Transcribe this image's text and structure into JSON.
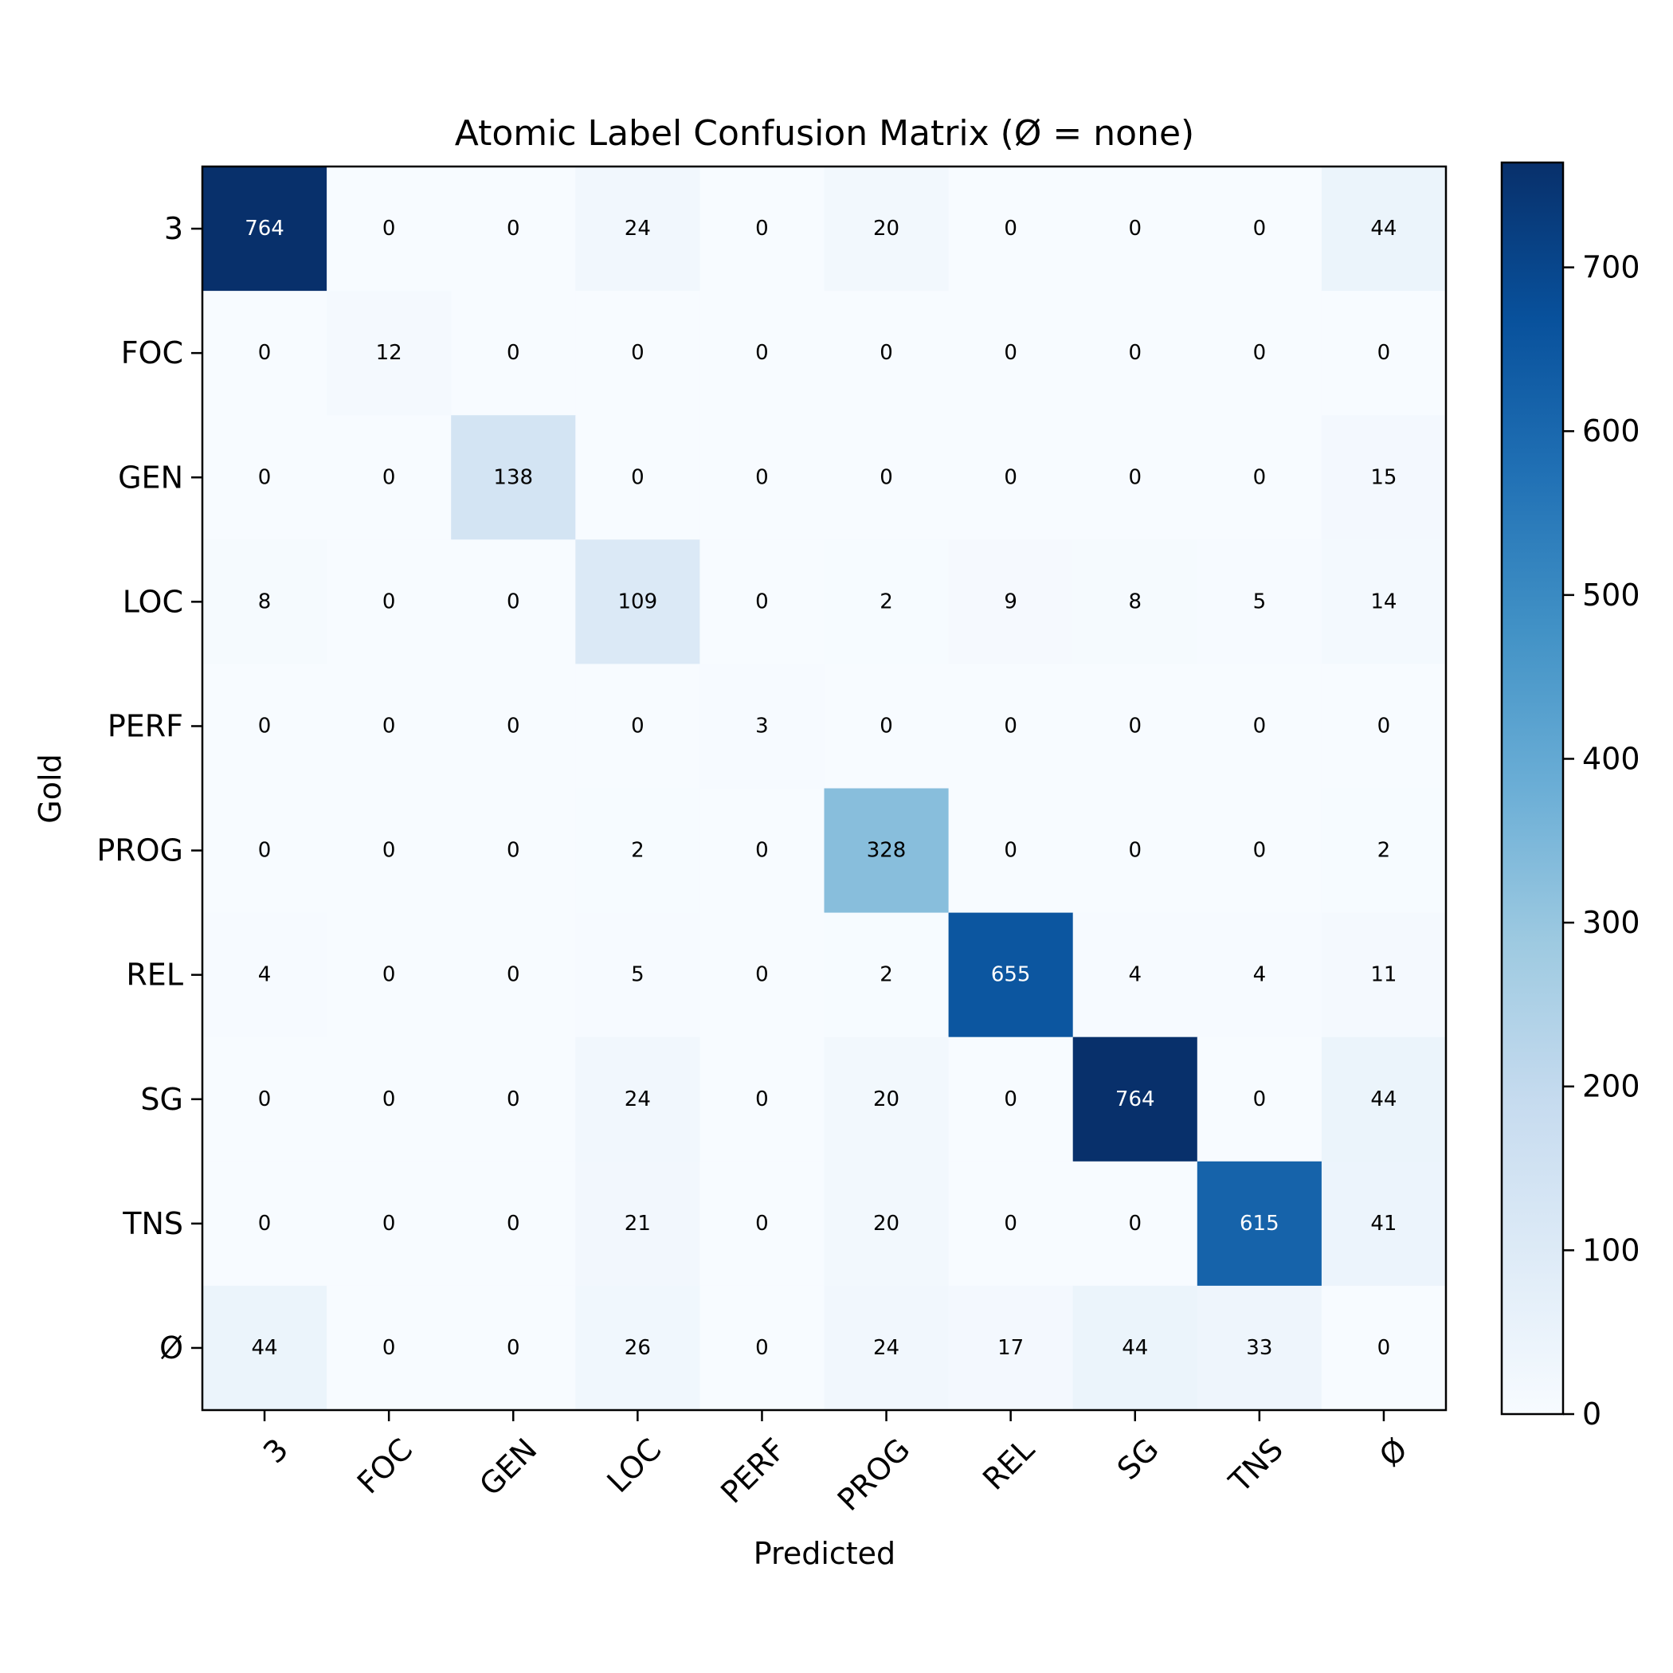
{
  "chart_data": {
    "type": "heatmap",
    "title": "Atomic Label Confusion Matrix (Ø = none)",
    "xlabel": "Predicted",
    "ylabel": "Gold",
    "x_categories": [
      "3",
      "FOC",
      "GEN",
      "LOC",
      "PERF",
      "PROG",
      "REL",
      "SG",
      "TNS",
      "Ø"
    ],
    "y_categories": [
      "3",
      "FOC",
      "GEN",
      "LOC",
      "PERF",
      "PROG",
      "REL",
      "SG",
      "TNS",
      "Ø"
    ],
    "values": [
      [
        764,
        0,
        0,
        24,
        0,
        20,
        0,
        0,
        0,
        44
      ],
      [
        0,
        12,
        0,
        0,
        0,
        0,
        0,
        0,
        0,
        0
      ],
      [
        0,
        0,
        138,
        0,
        0,
        0,
        0,
        0,
        0,
        15
      ],
      [
        8,
        0,
        0,
        109,
        0,
        2,
        9,
        8,
        5,
        14
      ],
      [
        0,
        0,
        0,
        0,
        3,
        0,
        0,
        0,
        0,
        0
      ],
      [
        0,
        0,
        0,
        2,
        0,
        328,
        0,
        0,
        0,
        2
      ],
      [
        4,
        0,
        0,
        5,
        0,
        2,
        655,
        4,
        4,
        11
      ],
      [
        0,
        0,
        0,
        24,
        0,
        20,
        0,
        764,
        0,
        44
      ],
      [
        0,
        0,
        0,
        21,
        0,
        20,
        0,
        0,
        615,
        41
      ],
      [
        44,
        0,
        0,
        26,
        0,
        24,
        17,
        44,
        33,
        0
      ]
    ],
    "colormap": "Blues",
    "vmin": 0,
    "vmax": 764,
    "colorbar_ticks": [
      0,
      100,
      200,
      300,
      400,
      500,
      600,
      700
    ],
    "grid": false,
    "legend": "colorbar-right"
  }
}
